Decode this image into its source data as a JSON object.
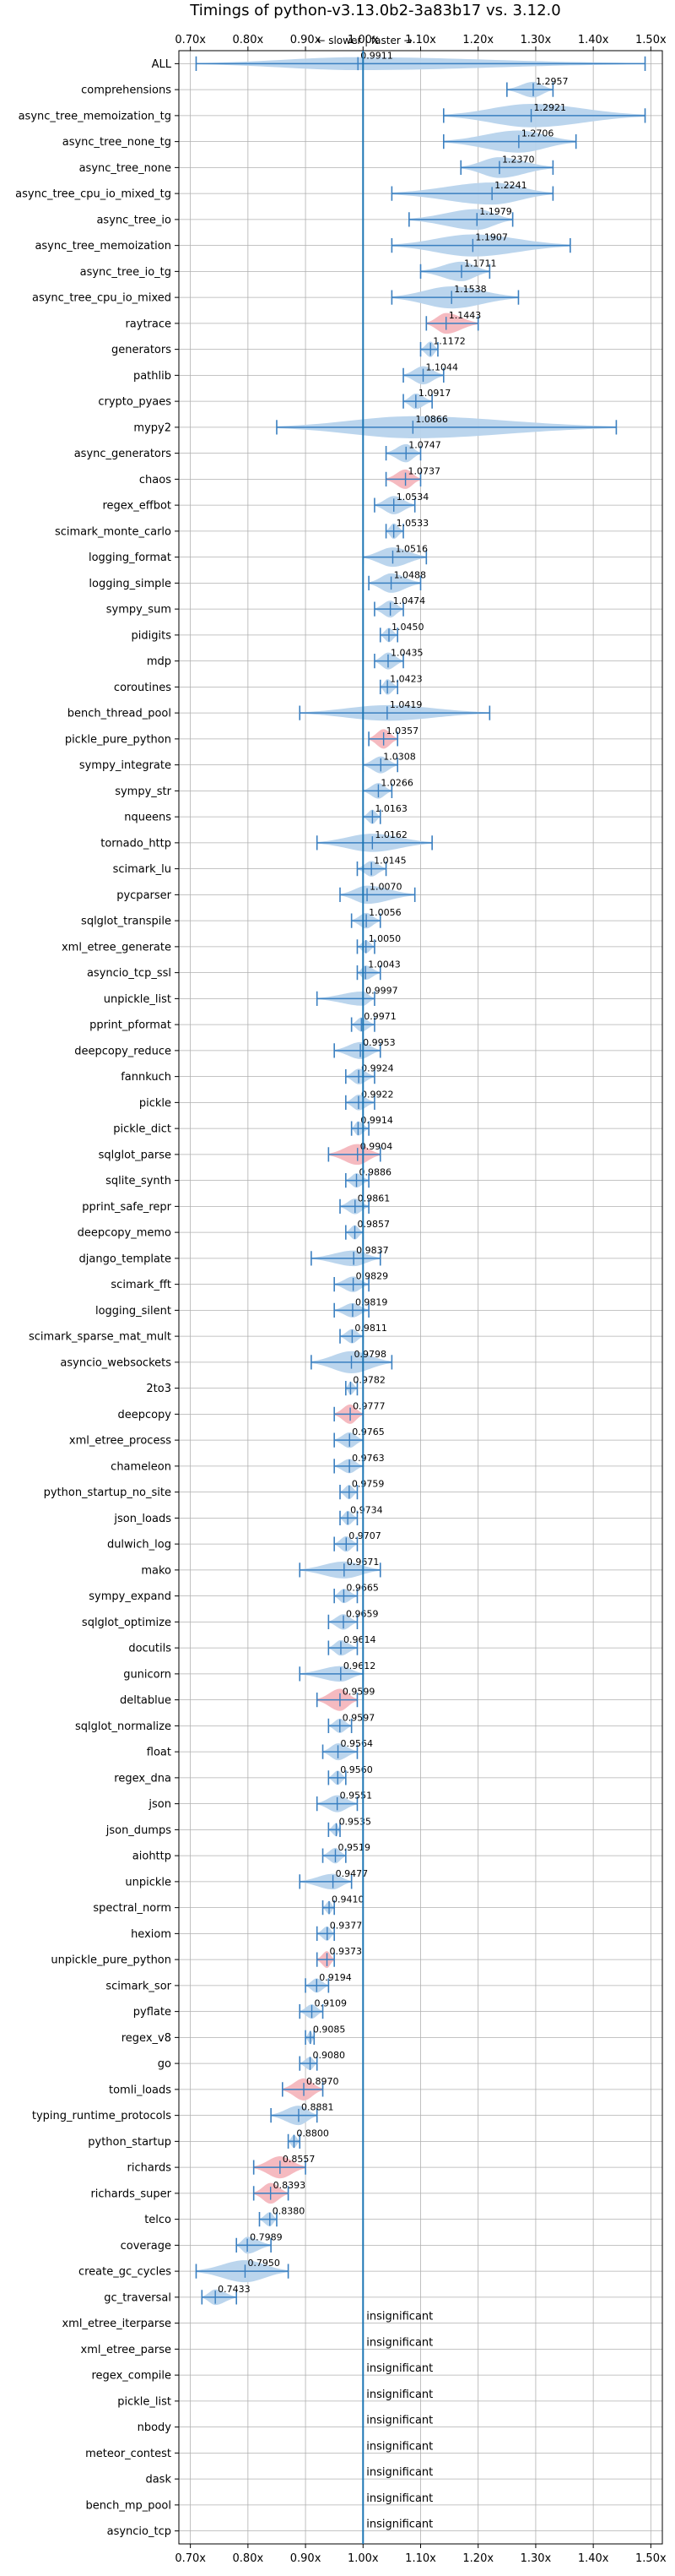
{
  "chart_data": {
    "type": "violin",
    "title": "Timings of python-v3.13.0b2-3a83b17 vs. 3.12.0",
    "direction_note": "← slower | faster →",
    "xlim": [
      0.68,
      1.52
    ],
    "x_ticks": [
      "0.70x",
      "0.80x",
      "0.90x",
      "1.00x",
      "1.10x",
      "1.20x",
      "1.30x",
      "1.40x",
      "1.50x"
    ],
    "x_tick_values": [
      0.7,
      0.8,
      0.9,
      1.0,
      1.1,
      1.2,
      1.3,
      1.4,
      1.5
    ],
    "reference_line": 1.0,
    "grid": true,
    "colors": {
      "significant": "#b7d3ec",
      "regression": "#f4b6bd",
      "stroke": "#3a7fc0",
      "reference": "#1f77b4"
    },
    "benchmarks": [
      {
        "name": "ALL",
        "value": 0.9911,
        "label": "0.9911",
        "lo": 0.71,
        "hi": 1.49,
        "width": 0.5,
        "color": "blue"
      },
      {
        "name": "comprehensions",
        "value": 1.2957,
        "label": "1.2957",
        "lo": 1.25,
        "hi": 1.33,
        "width": 0.6,
        "color": "blue"
      },
      {
        "name": "async_tree_memoization_tg",
        "value": 1.2921,
        "label": "1.2921",
        "lo": 1.14,
        "hi": 1.49,
        "width": 0.9,
        "color": "blue"
      },
      {
        "name": "async_tree_none_tg",
        "value": 1.2706,
        "label": "1.2706",
        "lo": 1.14,
        "hi": 1.37,
        "width": 0.85,
        "color": "blue"
      },
      {
        "name": "async_tree_none",
        "value": 1.237,
        "label": "1.2370",
        "lo": 1.17,
        "hi": 1.33,
        "width": 0.8,
        "color": "blue"
      },
      {
        "name": "async_tree_cpu_io_mixed_tg",
        "value": 1.2241,
        "label": "1.2241",
        "lo": 1.05,
        "hi": 1.33,
        "width": 0.85,
        "color": "blue"
      },
      {
        "name": "async_tree_io",
        "value": 1.1979,
        "label": "1.1979",
        "lo": 1.08,
        "hi": 1.26,
        "width": 0.8,
        "color": "blue"
      },
      {
        "name": "async_tree_memoization",
        "value": 1.1907,
        "label": "1.1907",
        "lo": 1.05,
        "hi": 1.36,
        "width": 0.85,
        "color": "blue"
      },
      {
        "name": "async_tree_io_tg",
        "value": 1.1711,
        "label": "1.1711",
        "lo": 1.1,
        "hi": 1.22,
        "width": 0.75,
        "color": "blue"
      },
      {
        "name": "async_tree_cpu_io_mixed",
        "value": 1.1538,
        "label": "1.1538",
        "lo": 1.05,
        "hi": 1.27,
        "width": 0.85,
        "color": "blue"
      },
      {
        "name": "raytrace",
        "value": 1.1443,
        "label": "1.1443",
        "lo": 1.11,
        "hi": 1.2,
        "width": 0.8,
        "color": "red"
      },
      {
        "name": "generators",
        "value": 1.1172,
        "label": "1.1172",
        "lo": 1.1,
        "hi": 1.13,
        "width": 0.6,
        "color": "blue"
      },
      {
        "name": "pathlib",
        "value": 1.1044,
        "label": "1.1044",
        "lo": 1.07,
        "hi": 1.14,
        "width": 0.7,
        "color": "blue"
      },
      {
        "name": "crypto_pyaes",
        "value": 1.0917,
        "label": "1.0917",
        "lo": 1.07,
        "hi": 1.12,
        "width": 0.6,
        "color": "blue"
      },
      {
        "name": "mypy2",
        "value": 1.0866,
        "label": "1.0866",
        "lo": 0.85,
        "hi": 1.44,
        "width": 0.85,
        "color": "blue"
      },
      {
        "name": "async_generators",
        "value": 1.0747,
        "label": "1.0747",
        "lo": 1.04,
        "hi": 1.1,
        "width": 0.7,
        "color": "blue"
      },
      {
        "name": "chaos",
        "value": 1.0737,
        "label": "1.0737",
        "lo": 1.04,
        "hi": 1.1,
        "width": 0.75,
        "color": "red"
      },
      {
        "name": "regex_effbot",
        "value": 1.0534,
        "label": "1.0534",
        "lo": 1.02,
        "hi": 1.09,
        "width": 0.7,
        "color": "blue"
      },
      {
        "name": "scimark_monte_carlo",
        "value": 1.0533,
        "label": "1.0533",
        "lo": 1.04,
        "hi": 1.07,
        "width": 0.6,
        "color": "blue"
      },
      {
        "name": "logging_format",
        "value": 1.0516,
        "label": "1.0516",
        "lo": 1.0,
        "hi": 1.11,
        "width": 0.75,
        "color": "blue"
      },
      {
        "name": "logging_simple",
        "value": 1.0488,
        "label": "1.0488",
        "lo": 1.01,
        "hi": 1.1,
        "width": 0.75,
        "color": "blue"
      },
      {
        "name": "sympy_sum",
        "value": 1.0474,
        "label": "1.0474",
        "lo": 1.02,
        "hi": 1.07,
        "width": 0.65,
        "color": "blue"
      },
      {
        "name": "pidigits",
        "value": 1.045,
        "label": "1.0450",
        "lo": 1.03,
        "hi": 1.06,
        "width": 0.55,
        "color": "blue"
      },
      {
        "name": "mdp",
        "value": 1.0435,
        "label": "1.0435",
        "lo": 1.02,
        "hi": 1.07,
        "width": 0.65,
        "color": "blue"
      },
      {
        "name": "coroutines",
        "value": 1.0423,
        "label": "1.0423",
        "lo": 1.03,
        "hi": 1.06,
        "width": 0.6,
        "color": "blue"
      },
      {
        "name": "bench_thread_pool",
        "value": 1.0419,
        "label": "1.0419",
        "lo": 0.89,
        "hi": 1.22,
        "width": 0.6,
        "color": "blue"
      },
      {
        "name": "pickle_pure_python",
        "value": 1.0357,
        "label": "1.0357",
        "lo": 1.01,
        "hi": 1.06,
        "width": 0.75,
        "color": "red"
      },
      {
        "name": "sympy_integrate",
        "value": 1.0308,
        "label": "1.0308",
        "lo": 1.0,
        "hi": 1.06,
        "width": 0.65,
        "color": "blue"
      },
      {
        "name": "sympy_str",
        "value": 1.0266,
        "label": "1.0266",
        "lo": 1.0,
        "hi": 1.05,
        "width": 0.6,
        "color": "blue"
      },
      {
        "name": "nqueens",
        "value": 1.0163,
        "label": "1.0163",
        "lo": 1.0,
        "hi": 1.03,
        "width": 0.55,
        "color": "blue"
      },
      {
        "name": "tornado_http",
        "value": 1.0162,
        "label": "1.0162",
        "lo": 0.92,
        "hi": 1.12,
        "width": 0.7,
        "color": "blue"
      },
      {
        "name": "scimark_lu",
        "value": 1.0145,
        "label": "1.0145",
        "lo": 0.99,
        "hi": 1.04,
        "width": 0.6,
        "color": "blue"
      },
      {
        "name": "pycparser",
        "value": 1.007,
        "label": "1.0070",
        "lo": 0.96,
        "hi": 1.09,
        "width": 0.7,
        "color": "blue"
      },
      {
        "name": "sqlglot_transpile",
        "value": 1.0056,
        "label": "1.0056",
        "lo": 0.98,
        "hi": 1.03,
        "width": 0.6,
        "color": "blue"
      },
      {
        "name": "xml_etree_generate",
        "value": 1.005,
        "label": "1.0050",
        "lo": 0.99,
        "hi": 1.02,
        "width": 0.5,
        "color": "blue"
      },
      {
        "name": "asyncio_tcp_ssl",
        "value": 1.0043,
        "label": "1.0043",
        "lo": 0.99,
        "hi": 1.03,
        "width": 0.55,
        "color": "blue"
      },
      {
        "name": "unpickle_list",
        "value": 0.9997,
        "label": "0.9997",
        "lo": 0.92,
        "hi": 1.02,
        "width": 0.55,
        "color": "blue"
      },
      {
        "name": "pprint_pformat",
        "value": 0.9971,
        "label": "0.9971",
        "lo": 0.98,
        "hi": 1.02,
        "width": 0.55,
        "color": "blue"
      },
      {
        "name": "deepcopy_reduce",
        "value": 0.9953,
        "label": "0.9953",
        "lo": 0.95,
        "hi": 1.03,
        "width": 0.65,
        "color": "blue"
      },
      {
        "name": "fannkuch",
        "value": 0.9924,
        "label": "0.9924",
        "lo": 0.97,
        "hi": 1.02,
        "width": 0.6,
        "color": "blue"
      },
      {
        "name": "pickle",
        "value": 0.9922,
        "label": "0.9922",
        "lo": 0.97,
        "hi": 1.02,
        "width": 0.6,
        "color": "blue"
      },
      {
        "name": "pickle_dict",
        "value": 0.9914,
        "label": "0.9914",
        "lo": 0.98,
        "hi": 1.01,
        "width": 0.55,
        "color": "blue"
      },
      {
        "name": "sqlglot_parse",
        "value": 0.9904,
        "label": "0.9904",
        "lo": 0.94,
        "hi": 1.03,
        "width": 0.8,
        "color": "red"
      },
      {
        "name": "sqlite_synth",
        "value": 0.9886,
        "label": "0.9886",
        "lo": 0.97,
        "hi": 1.01,
        "width": 0.55,
        "color": "blue"
      },
      {
        "name": "pprint_safe_repr",
        "value": 0.9861,
        "label": "0.9861",
        "lo": 0.96,
        "hi": 1.01,
        "width": 0.6,
        "color": "blue"
      },
      {
        "name": "deepcopy_memo",
        "value": 0.9857,
        "label": "0.9857",
        "lo": 0.97,
        "hi": 1.0,
        "width": 0.55,
        "color": "blue"
      },
      {
        "name": "django_template",
        "value": 0.9837,
        "label": "0.9837",
        "lo": 0.91,
        "hi": 1.03,
        "width": 0.6,
        "color": "blue"
      },
      {
        "name": "scimark_fft",
        "value": 0.9829,
        "label": "0.9829",
        "lo": 0.95,
        "hi": 1.01,
        "width": 0.6,
        "color": "blue"
      },
      {
        "name": "logging_silent",
        "value": 0.9819,
        "label": "0.9819",
        "lo": 0.95,
        "hi": 1.01,
        "width": 0.55,
        "color": "blue"
      },
      {
        "name": "scimark_sparse_mat_mult",
        "value": 0.9811,
        "label": "0.9811",
        "lo": 0.96,
        "hi": 1.0,
        "width": 0.55,
        "color": "blue"
      },
      {
        "name": "asyncio_websockets",
        "value": 0.9798,
        "label": "0.9798",
        "lo": 0.91,
        "hi": 1.05,
        "width": 0.85,
        "color": "blue"
      },
      {
        "name": "2to3",
        "value": 0.9782,
        "label": "0.9782",
        "lo": 0.97,
        "hi": 0.99,
        "width": 0.5,
        "color": "blue"
      },
      {
        "name": "deepcopy",
        "value": 0.9777,
        "label": "0.9777",
        "lo": 0.95,
        "hi": 1.0,
        "width": 0.75,
        "color": "red"
      },
      {
        "name": "xml_etree_process",
        "value": 0.9765,
        "label": "0.9765",
        "lo": 0.95,
        "hi": 1.0,
        "width": 0.6,
        "color": "blue"
      },
      {
        "name": "chameleon",
        "value": 0.9763,
        "label": "0.9763",
        "lo": 0.95,
        "hi": 1.0,
        "width": 0.55,
        "color": "blue"
      },
      {
        "name": "python_startup_no_site",
        "value": 0.9759,
        "label": "0.9759",
        "lo": 0.96,
        "hi": 0.99,
        "width": 0.55,
        "color": "blue"
      },
      {
        "name": "json_loads",
        "value": 0.9734,
        "label": "0.9734",
        "lo": 0.96,
        "hi": 0.99,
        "width": 0.55,
        "color": "blue"
      },
      {
        "name": "dulwich_log",
        "value": 0.9707,
        "label": "0.9707",
        "lo": 0.95,
        "hi": 0.99,
        "width": 0.6,
        "color": "blue"
      },
      {
        "name": "mako",
        "value": 0.9671,
        "label": "0.9671",
        "lo": 0.89,
        "hi": 1.03,
        "width": 0.65,
        "color": "blue"
      },
      {
        "name": "sympy_expand",
        "value": 0.9665,
        "label": "0.9665",
        "lo": 0.95,
        "hi": 0.99,
        "width": 0.55,
        "color": "blue"
      },
      {
        "name": "sqlglot_optimize",
        "value": 0.9659,
        "label": "0.9659",
        "lo": 0.94,
        "hi": 0.99,
        "width": 0.6,
        "color": "blue"
      },
      {
        "name": "docutils",
        "value": 0.9614,
        "label": "0.9614",
        "lo": 0.94,
        "hi": 0.99,
        "width": 0.6,
        "color": "blue"
      },
      {
        "name": "gunicorn",
        "value": 0.9612,
        "label": "0.9612",
        "lo": 0.89,
        "hi": 1.0,
        "width": 0.6,
        "color": "blue"
      },
      {
        "name": "deltablue",
        "value": 0.9599,
        "label": "0.9599",
        "lo": 0.92,
        "hi": 0.99,
        "width": 0.85,
        "color": "red"
      },
      {
        "name": "sqlglot_normalize",
        "value": 0.9597,
        "label": "0.9597",
        "lo": 0.94,
        "hi": 0.98,
        "width": 0.55,
        "color": "blue"
      },
      {
        "name": "float",
        "value": 0.9564,
        "label": "0.9564",
        "lo": 0.93,
        "hi": 0.99,
        "width": 0.65,
        "color": "blue"
      },
      {
        "name": "regex_dna",
        "value": 0.956,
        "label": "0.9560",
        "lo": 0.94,
        "hi": 0.97,
        "width": 0.55,
        "color": "blue"
      },
      {
        "name": "json",
        "value": 0.9551,
        "label": "0.9551",
        "lo": 0.92,
        "hi": 0.99,
        "width": 0.65,
        "color": "blue"
      },
      {
        "name": "json_dumps",
        "value": 0.9535,
        "label": "0.9535",
        "lo": 0.94,
        "hi": 0.96,
        "width": 0.5,
        "color": "blue"
      },
      {
        "name": "aiohttp",
        "value": 0.9519,
        "label": "0.9519",
        "lo": 0.93,
        "hi": 0.97,
        "width": 0.6,
        "color": "blue"
      },
      {
        "name": "unpickle",
        "value": 0.9477,
        "label": "0.9477",
        "lo": 0.89,
        "hi": 0.98,
        "width": 0.6,
        "color": "blue"
      },
      {
        "name": "spectral_norm",
        "value": 0.941,
        "label": "0.9410",
        "lo": 0.93,
        "hi": 0.95,
        "width": 0.5,
        "color": "blue"
      },
      {
        "name": "hexiom",
        "value": 0.9377,
        "label": "0.9377",
        "lo": 0.92,
        "hi": 0.95,
        "width": 0.55,
        "color": "blue"
      },
      {
        "name": "unpickle_pure_python",
        "value": 0.9373,
        "label": "0.9373",
        "lo": 0.92,
        "hi": 0.95,
        "width": 0.65,
        "color": "red"
      },
      {
        "name": "scimark_sor",
        "value": 0.9194,
        "label": "0.9194",
        "lo": 0.9,
        "hi": 0.94,
        "width": 0.55,
        "color": "blue"
      },
      {
        "name": "pyflate",
        "value": 0.9109,
        "label": "0.9109",
        "lo": 0.89,
        "hi": 0.93,
        "width": 0.55,
        "color": "blue"
      },
      {
        "name": "regex_v8",
        "value": 0.9085,
        "label": "0.9085",
        "lo": 0.9,
        "hi": 0.915,
        "width": 0.5,
        "color": "blue"
      },
      {
        "name": "go",
        "value": 0.908,
        "label": "0.9080",
        "lo": 0.89,
        "hi": 0.92,
        "width": 0.5,
        "color": "blue"
      },
      {
        "name": "tomli_loads",
        "value": 0.897,
        "label": "0.8970",
        "lo": 0.86,
        "hi": 0.93,
        "width": 0.85,
        "color": "red"
      },
      {
        "name": "typing_runtime_protocols",
        "value": 0.8881,
        "label": "0.8881",
        "lo": 0.84,
        "hi": 0.92,
        "width": 0.75,
        "color": "blue"
      },
      {
        "name": "python_startup",
        "value": 0.88,
        "label": "0.8800",
        "lo": 0.87,
        "hi": 0.89,
        "width": 0.5,
        "color": "blue"
      },
      {
        "name": "richards",
        "value": 0.8557,
        "label": "0.8557",
        "lo": 0.81,
        "hi": 0.9,
        "width": 0.85,
        "color": "red"
      },
      {
        "name": "richards_super",
        "value": 0.8393,
        "label": "0.8393",
        "lo": 0.81,
        "hi": 0.87,
        "width": 0.8,
        "color": "red"
      },
      {
        "name": "telco",
        "value": 0.838,
        "label": "0.8380",
        "lo": 0.82,
        "hi": 0.85,
        "width": 0.55,
        "color": "blue"
      },
      {
        "name": "coverage",
        "value": 0.7989,
        "label": "0.7989",
        "lo": 0.78,
        "hi": 0.84,
        "width": 0.65,
        "color": "blue"
      },
      {
        "name": "create_gc_cycles",
        "value": 0.795,
        "label": "0.7950",
        "lo": 0.71,
        "hi": 0.87,
        "width": 0.85,
        "color": "blue"
      },
      {
        "name": "gc_traversal",
        "value": 0.7433,
        "label": "0.7433",
        "lo": 0.72,
        "hi": 0.78,
        "width": 0.6,
        "color": "blue"
      },
      {
        "name": "xml_etree_iterparse",
        "insignificant": true,
        "label": "insignificant"
      },
      {
        "name": "xml_etree_parse",
        "insignificant": true,
        "label": "insignificant"
      },
      {
        "name": "regex_compile",
        "insignificant": true,
        "label": "insignificant"
      },
      {
        "name": "pickle_list",
        "insignificant": true,
        "label": "insignificant"
      },
      {
        "name": "nbody",
        "insignificant": true,
        "label": "insignificant"
      },
      {
        "name": "meteor_contest",
        "insignificant": true,
        "label": "insignificant"
      },
      {
        "name": "dask",
        "insignificant": true,
        "label": "insignificant"
      },
      {
        "name": "bench_mp_pool",
        "insignificant": true,
        "label": "insignificant"
      },
      {
        "name": "asyncio_tcp",
        "insignificant": true,
        "label": "insignificant"
      }
    ]
  }
}
